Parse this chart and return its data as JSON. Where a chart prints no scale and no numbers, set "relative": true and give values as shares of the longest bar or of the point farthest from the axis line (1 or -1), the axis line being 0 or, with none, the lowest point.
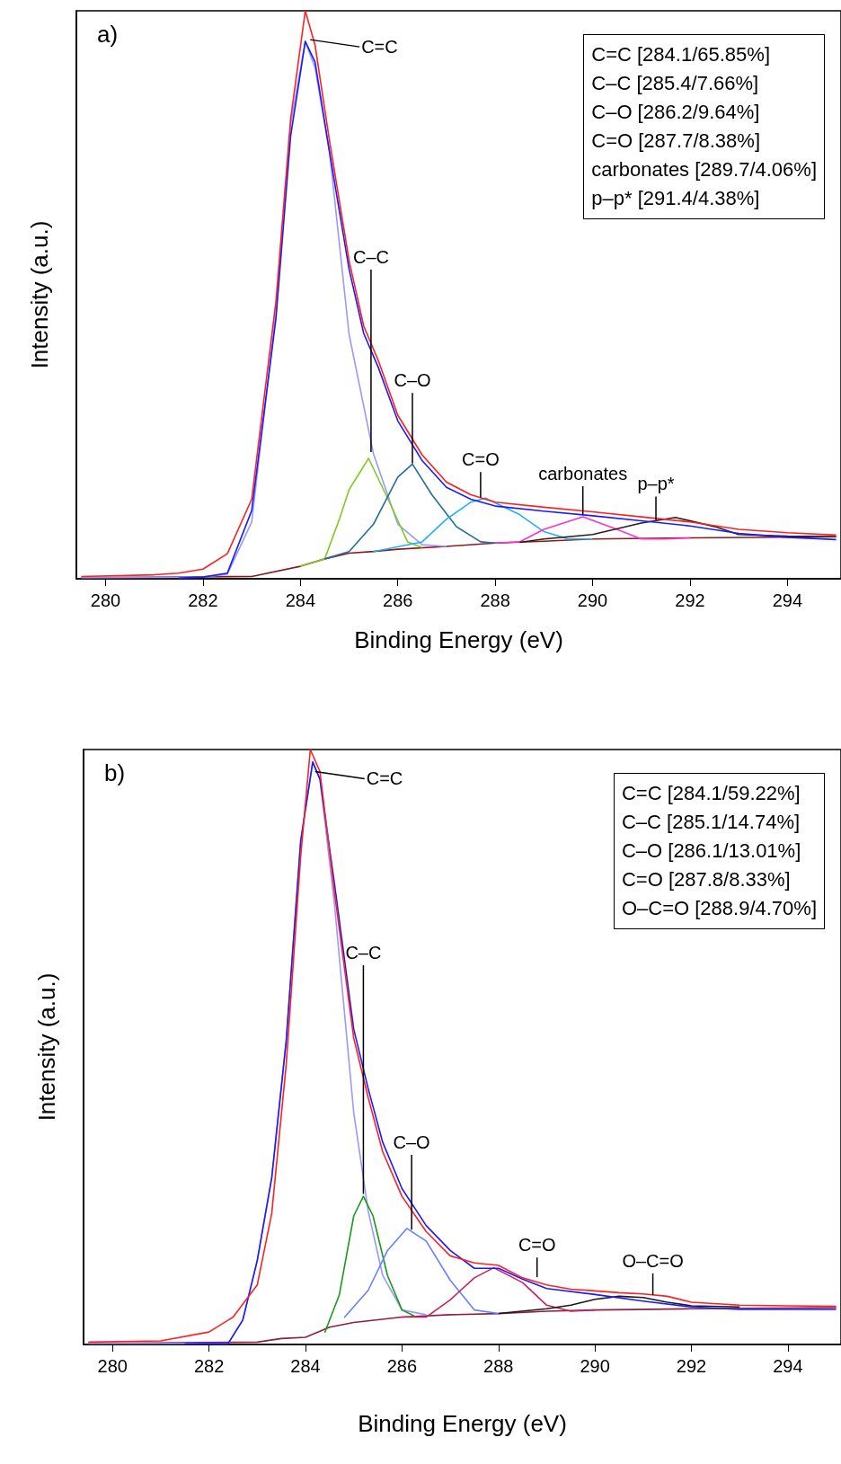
{
  "chart_data": [
    {
      "type": "line",
      "title": "a)",
      "xlabel": "Binding Energy (eV)",
      "ylabel": "Intensity (a.u.)",
      "relative": true,
      "xlim": [
        279.4,
        295.1
      ],
      "xticks": [
        280,
        282,
        284,
        286,
        288,
        290,
        292,
        294
      ],
      "grid": false,
      "series": [
        {
          "color": "#8b1a1a",
          "x": [
            279.5,
            283,
            284,
            284.5,
            285,
            285.5,
            286,
            287,
            288,
            289,
            290,
            292,
            295
          ],
          "values": [
            0.002,
            0.004,
            0.022,
            0.035,
            0.045,
            0.048,
            0.052,
            0.057,
            0.063,
            0.066,
            0.07,
            0.072,
            0.074
          ]
        },
        {
          "color": "#9999ff",
          "x": [
            279.5,
            282,
            282.5,
            283,
            283.5,
            283.8,
            284.1,
            284.3,
            284.6,
            285,
            285.5,
            286,
            286.5,
            287
          ],
          "values": [
            0.002,
            0.003,
            0.008,
            0.1,
            0.47,
            0.8,
            0.946,
            0.9,
            0.75,
            0.43,
            0.22,
            0.096,
            0.06,
            0.057
          ]
        },
        {
          "color": "#80cc20",
          "x": [
            284,
            284.5,
            284.8,
            285,
            285.4,
            285.8,
            286.2,
            286.5
          ],
          "values": [
            0.022,
            0.035,
            0.105,
            0.157,
            0.212,
            0.14,
            0.065,
            0.055
          ]
        },
        {
          "color": "#1f6e9e",
          "x": [
            284.5,
            285,
            285.5,
            286,
            286.3,
            286.7,
            287.2,
            287.7,
            288
          ],
          "values": [
            0.035,
            0.048,
            0.096,
            0.179,
            0.202,
            0.148,
            0.092,
            0.065,
            0.063
          ]
        },
        {
          "color": "#20b0ff",
          "x": [
            285.5,
            286.5,
            287,
            287.5,
            287.8,
            288.5,
            289,
            289.5,
            290
          ],
          "values": [
            0.048,
            0.065,
            0.105,
            0.135,
            0.142,
            0.113,
            0.083,
            0.07,
            0.07
          ]
        },
        {
          "color": "#ff30d0",
          "x": [
            288,
            288.5,
            289,
            289.8,
            290.5,
            291,
            291.5,
            292
          ],
          "values": [
            0.063,
            0.065,
            0.087,
            0.109,
            0.087,
            0.07,
            0.07,
            0.072
          ]
        },
        {
          "color": "#331a1a",
          "x": [
            288.5,
            289,
            290,
            291,
            291.7,
            292.5,
            293,
            294,
            295
          ],
          "values": [
            0.064,
            0.07,
            0.078,
            0.098,
            0.108,
            0.092,
            0.078,
            0.075,
            0.074
          ]
        },
        {
          "color": "#1a1aff",
          "x": [
            281.5,
            282,
            282.5,
            283,
            283.5,
            283.8,
            284.1,
            284.3,
            284.6,
            285,
            285.3,
            285.6,
            286,
            286.5,
            287,
            287.5,
            288,
            289,
            290,
            291,
            292,
            293,
            294,
            295
          ],
          "values": [
            0.001,
            0.003,
            0.01,
            0.12,
            0.46,
            0.78,
            0.946,
            0.91,
            0.75,
            0.545,
            0.432,
            0.372,
            0.278,
            0.208,
            0.161,
            0.14,
            0.128,
            0.119,
            0.111,
            0.102,
            0.093,
            0.08,
            0.073,
            0.069
          ]
        },
        {
          "color": "#ff2020",
          "x": [
            279.5,
            281,
            281.5,
            282,
            282.5,
            283,
            283.5,
            283.8,
            284.1,
            284.3,
            284.6,
            285,
            285.3,
            285.6,
            286,
            286.5,
            287,
            287.5,
            288,
            289,
            290,
            291,
            292,
            293,
            294,
            295
          ],
          "values": [
            0.004,
            0.007,
            0.01,
            0.017,
            0.044,
            0.14,
            0.49,
            0.81,
            1.0,
            0.94,
            0.77,
            0.56,
            0.445,
            0.384,
            0.288,
            0.218,
            0.17,
            0.148,
            0.135,
            0.126,
            0.118,
            0.109,
            0.1,
            0.087,
            0.081,
            0.077
          ]
        }
      ],
      "annotations": [
        "C=C [284.1/65.85%]",
        "C–C [285.4/7.66%]",
        "C–O [286.2/9.64%]",
        "C=O [287.7/8.38%]",
        "carbonates [289.7/4.06%]",
        "p–p* [291.4/4.38%]",
        {
          "text": "C=C",
          "x": 284.2,
          "y": 0.946
        },
        {
          "text": "C–C",
          "x": 285.45,
          "y": 0.22
        },
        {
          "text": "C–O",
          "x": 286.3,
          "y": 0.2
        },
        {
          "text": "C=O",
          "x": 287.7,
          "y": 0.14
        },
        {
          "text": "carbonates",
          "x": 289.8,
          "y": 0.11
        },
        {
          "text": "p–p*",
          "x": 291.3,
          "y": 0.1
        }
      ]
    },
    {
      "type": "line",
      "title": "b)",
      "xlabel": "Binding Energy (eV)",
      "ylabel": "Intensity (a.u.)",
      "relative": true,
      "xlim": [
        279.4,
        295.1
      ],
      "xticks": [
        280,
        282,
        284,
        286,
        288,
        290,
        292,
        294
      ],
      "grid": false,
      "series": [
        {
          "color": "#8b2040",
          "x": [
            279.5,
            283,
            283.5,
            284,
            284.5,
            285,
            286,
            287,
            288,
            289,
            290,
            292,
            295
          ],
          "values": [
            0.002,
            0.004,
            0.01,
            0.012,
            0.029,
            0.037,
            0.046,
            0.05,
            0.052,
            0.056,
            0.058,
            0.06,
            0.062
          ]
        },
        {
          "color": "#9999ff",
          "x": [
            279.5,
            282.4,
            282.7,
            283,
            283.3,
            283.6,
            283.9,
            284.15,
            284.3,
            284.6,
            285,
            285.3,
            285.6,
            286,
            286.5
          ],
          "values": [
            0.002,
            0.002,
            0.041,
            0.141,
            0.28,
            0.51,
            0.846,
            0.979,
            0.95,
            0.74,
            0.39,
            0.224,
            0.116,
            0.058,
            0.05
          ]
        },
        {
          "color": "#1a9a1a",
          "x": [
            284.4,
            284.7,
            285,
            285.2,
            285.4,
            285.7,
            286,
            286.3
          ],
          "values": [
            0.02,
            0.083,
            0.216,
            0.249,
            0.216,
            0.116,
            0.058,
            0.046
          ]
        },
        {
          "color": "#6680ff",
          "x": [
            284.8,
            285.3,
            285.7,
            286.1,
            286.5,
            287,
            287.5,
            288
          ],
          "values": [
            0.045,
            0.091,
            0.158,
            0.195,
            0.174,
            0.108,
            0.058,
            0.052
          ]
        },
        {
          "color": "#cc2060",
          "x": [
            286,
            286.5,
            287,
            287.5,
            287.9,
            288.5,
            289,
            289.5,
            290
          ],
          "values": [
            0.046,
            0.046,
            0.075,
            0.112,
            0.129,
            0.104,
            0.066,
            0.056,
            0.058
          ]
        },
        {
          "color": "#1a1a1a",
          "x": [
            288,
            289,
            289.5,
            290,
            290.5,
            291,
            291.5,
            292,
            293
          ],
          "values": [
            0.052,
            0.06,
            0.066,
            0.076,
            0.081,
            0.079,
            0.071,
            0.065,
            0.063
          ]
        },
        {
          "color": "#1a1aff",
          "x": [
            281.5,
            282.4,
            282.7,
            283,
            283.3,
            283.6,
            283.9,
            284.15,
            284.3,
            284.6,
            285,
            285.3,
            285.6,
            286,
            286.5,
            287,
            287.5,
            288,
            288.5,
            289,
            290,
            291,
            292,
            293,
            294,
            295
          ],
          "values": [
            0.001,
            0.002,
            0.041,
            0.141,
            0.28,
            0.51,
            0.846,
            0.979,
            0.95,
            0.775,
            0.53,
            0.43,
            0.34,
            0.262,
            0.2,
            0.158,
            0.128,
            0.128,
            0.11,
            0.094,
            0.084,
            0.073,
            0.063,
            0.059,
            0.059,
            0.059
          ]
        },
        {
          "color": "#ff2020",
          "x": [
            279.5,
            281,
            282,
            282.5,
            283,
            283.3,
            283.6,
            283.9,
            284.1,
            284.3,
            284.6,
            285,
            285.3,
            285.6,
            286,
            286.5,
            287,
            287.5,
            288,
            288.5,
            289,
            289.5,
            290,
            290.5,
            291,
            291.5,
            292,
            293,
            294,
            295
          ],
          "values": [
            0.004,
            0.006,
            0.021,
            0.046,
            0.1,
            0.22,
            0.47,
            0.82,
            1.0,
            0.963,
            0.76,
            0.515,
            0.415,
            0.324,
            0.249,
            0.19,
            0.149,
            0.137,
            0.133,
            0.112,
            0.1,
            0.093,
            0.09,
            0.087,
            0.085,
            0.081,
            0.071,
            0.066,
            0.065,
            0.064
          ]
        }
      ],
      "annotations": [
        "C=C [284.1/59.22%]",
        "C–C [285.1/14.74%]",
        "C–O [286.1/13.01%]",
        "C=O [287.8/8.33%]",
        "O–C=O [288.9/4.70%]",
        {
          "text": "C=C",
          "x": 284.2,
          "y": 0.96
        },
        {
          "text": "C–C",
          "x": 285.2,
          "y": 0.25
        },
        {
          "text": "C–O",
          "x": 286.2,
          "y": 0.19
        },
        {
          "text": "C=O",
          "x": 288.8,
          "y": 0.11
        },
        {
          "text": "O–C=O",
          "x": 291.2,
          "y": 0.08
        }
      ]
    }
  ]
}
